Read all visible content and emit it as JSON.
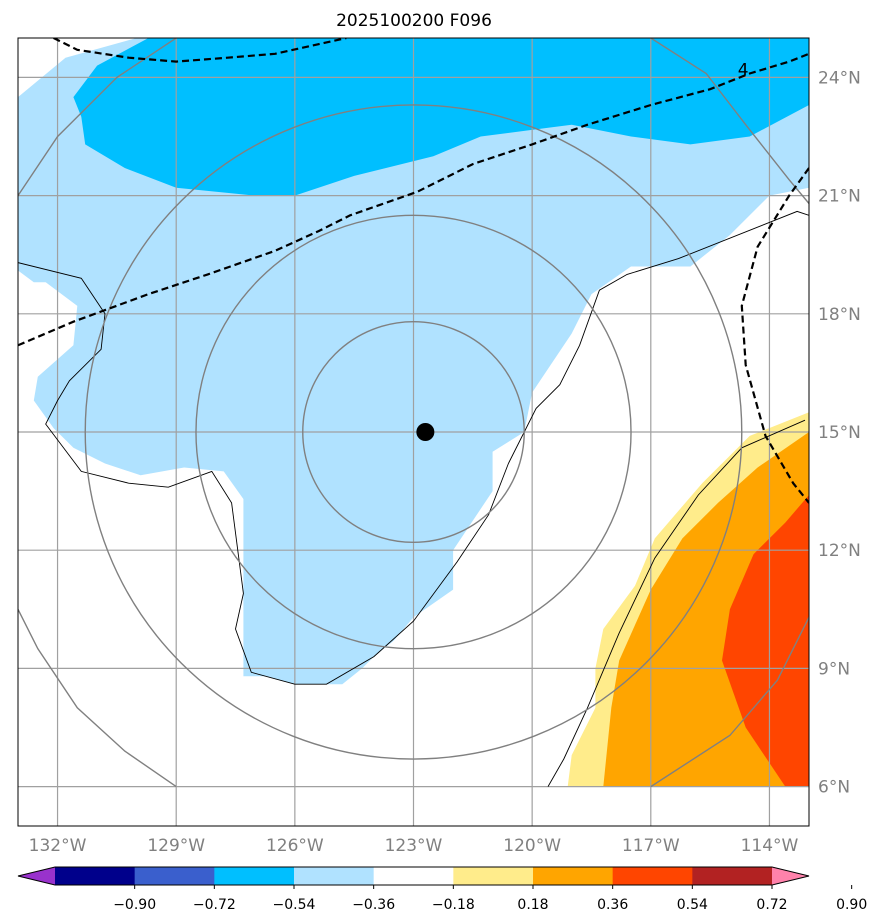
{
  "chart_data": {
    "type": "map",
    "title": "2025100200 F096",
    "lon_range": [
      -133,
      -113
    ],
    "lat_range": [
      5,
      25
    ],
    "x_ticks": [
      {
        "value": -132,
        "label": "132°W"
      },
      {
        "value": -129,
        "label": "129°W"
      },
      {
        "value": -126,
        "label": "126°W"
      },
      {
        "value": -123,
        "label": "123°W"
      },
      {
        "value": -120,
        "label": "120°W"
      },
      {
        "value": -117,
        "label": "117°W"
      },
      {
        "value": -114,
        "label": "114°W"
      }
    ],
    "y_ticks": [
      {
        "value": 24,
        "label": "24°N"
      },
      {
        "value": 21,
        "label": "21°N"
      },
      {
        "value": 18,
        "label": "18°N"
      },
      {
        "value": 15,
        "label": "15°N"
      },
      {
        "value": 12,
        "label": "12°N"
      },
      {
        "value": 9,
        "label": "9°N"
      },
      {
        "value": 6,
        "label": "6°N"
      }
    ],
    "storm_center": {
      "lon": -122.7,
      "lat": 15.0
    },
    "range_rings_deg": [
      2.8,
      5.5,
      8.3
    ],
    "range_ring_center": {
      "lon": -123.0,
      "lat": 15.0
    },
    "contour_label": "4",
    "colorbar": {
      "ticks": [
        "−0.90",
        "−0.72",
        "−0.54",
        "−0.36",
        "−0.18",
        "0.18",
        "0.36",
        "0.54",
        "0.72",
        "0.90"
      ],
      "colors": [
        "#9932cc",
        "#00008b",
        "#3a5fcd",
        "#00bfff",
        "#b0e2ff",
        "#ffffff",
        "#ffec8b",
        "#ffa500",
        "#ff4500",
        "#b22222",
        "#ff82ab"
      ]
    },
    "fill_colors": {
      "deep_negative": "#00bfff",
      "negative": "#b0e2ff",
      "positive_low": "#ffec8b",
      "positive_mid": "#ffa500",
      "positive_high": "#ff4500"
    },
    "fields": {
      "light_blue": [
        [
          -133,
          23.5
        ],
        [
          -131.8,
          24.5
        ],
        [
          -130,
          25
        ],
        [
          -113,
          25
        ],
        [
          -113,
          21.2
        ],
        [
          -114,
          21
        ],
        [
          -115,
          20
        ],
        [
          -116,
          19.2
        ],
        [
          -117.5,
          19.2
        ],
        [
          -118.5,
          18.5
        ],
        [
          -119,
          17.5
        ],
        [
          -120,
          16
        ],
        [
          -120.2,
          15
        ],
        [
          -121,
          14.5
        ],
        [
          -121,
          13.5
        ],
        [
          -122,
          12
        ],
        [
          -122,
          11
        ],
        [
          -123,
          10.3
        ],
        [
          -123.5,
          9.7
        ],
        [
          -124,
          9.3
        ],
        [
          -124.3,
          9.0
        ],
        [
          -124.8,
          8.6
        ],
        [
          -126,
          8.6
        ],
        [
          -126.7,
          8.8
        ],
        [
          -127.3,
          8.8
        ],
        [
          -127.3,
          13.3
        ],
        [
          -127.8,
          14
        ],
        [
          -128.8,
          14.1
        ],
        [
          -129.9,
          13.9
        ],
        [
          -130.8,
          14.2
        ],
        [
          -131.6,
          14.6
        ],
        [
          -132.1,
          15.1
        ],
        [
          -132.6,
          15.8
        ],
        [
          -132.5,
          16.4
        ],
        [
          -131.6,
          17.2
        ],
        [
          -131.5,
          18.2
        ],
        [
          -132.3,
          18.8
        ],
        [
          -132.6,
          18.8
        ],
        [
          -133,
          19.1
        ]
      ],
      "deep_blue": [
        [
          -131.4,
          23.0
        ],
        [
          -131.3,
          22.3
        ],
        [
          -130.3,
          21.7
        ],
        [
          -129,
          21.2
        ],
        [
          -127,
          21
        ],
        [
          -126,
          21
        ],
        [
          -124.5,
          21.5
        ],
        [
          -122.5,
          22
        ],
        [
          -121.3,
          22.5
        ],
        [
          -119,
          22.8
        ],
        [
          -117.5,
          22.5
        ],
        [
          -116,
          22.3
        ],
        [
          -114.5,
          22.5
        ],
        [
          -113,
          23.3
        ],
        [
          -113,
          25
        ],
        [
          -129.7,
          25
        ],
        [
          -131,
          24.3
        ],
        [
          -131.6,
          23.5
        ]
      ],
      "yellow": [
        [
          -113,
          15.5
        ],
        [
          -114.5,
          14.9
        ],
        [
          -115.7,
          13.7
        ],
        [
          -116.9,
          12.3
        ],
        [
          -117.4,
          11.1
        ],
        [
          -118.2,
          10.0
        ],
        [
          -118.4,
          9.0
        ],
        [
          -118.4,
          8.0
        ],
        [
          -119.0,
          6.8
        ],
        [
          -119.1,
          6.0
        ],
        [
          -113,
          6.0
        ]
      ],
      "orange": [
        [
          -113,
          15.0
        ],
        [
          -114.3,
          14.1
        ],
        [
          -115.3,
          13.2
        ],
        [
          -116.2,
          12.3
        ],
        [
          -117,
          11.0
        ],
        [
          -117.8,
          9.2
        ],
        [
          -118.0,
          8.0
        ],
        [
          -118.2,
          6.0
        ],
        [
          -113,
          6.0
        ]
      ],
      "red": [
        [
          -113,
          13.4
        ],
        [
          -113.6,
          12.7
        ],
        [
          -114.4,
          11.9
        ],
        [
          -115,
          10.5
        ],
        [
          -115.2,
          9.2
        ],
        [
          -114.6,
          7.5
        ],
        [
          -113.6,
          6.0
        ],
        [
          -113,
          6.0
        ]
      ]
    },
    "solid_contours": [
      [
        [
          -133,
          19.3
        ],
        [
          -131.4,
          18.9
        ],
        [
          -130.8,
          18.0
        ],
        [
          -130.9,
          17.1
        ],
        [
          -131.7,
          16.3
        ],
        [
          -132,
          15.8
        ],
        [
          -132.3,
          15.2
        ],
        [
          -131.4,
          14.0
        ],
        [
          -130.2,
          13.7
        ],
        [
          -129.2,
          13.6
        ],
        [
          -128.1,
          14
        ],
        [
          -127.6,
          13.2
        ],
        [
          -127.3,
          10.9
        ],
        [
          -127.5,
          10.0
        ],
        [
          -127.1,
          8.9
        ],
        [
          -126.0,
          8.6
        ],
        [
          -125.2,
          8.6
        ],
        [
          -124,
          9.3
        ],
        [
          -123.0,
          10.2
        ],
        [
          -121.9,
          11.7
        ],
        [
          -121.1,
          12.9
        ],
        [
          -120.6,
          14.2
        ],
        [
          -119.9,
          15.6
        ],
        [
          -119.3,
          16.2
        ],
        [
          -118.8,
          17.2
        ],
        [
          -118.3,
          18.6
        ],
        [
          -117.6,
          19.0
        ],
        [
          -116.3,
          19.4
        ],
        [
          -113.3,
          20.6
        ],
        [
          -113,
          20.5
        ]
      ],
      [
        [
          -113.1,
          15.3
        ],
        [
          -114.7,
          14.6
        ],
        [
          -115.8,
          13.4
        ],
        [
          -116.9,
          11.8
        ],
        [
          -117.8,
          9.9
        ],
        [
          -118.6,
          8.0
        ],
        [
          -119.2,
          6.7
        ],
        [
          -119.6,
          6.0
        ]
      ]
    ],
    "dashed_contours": [
      [
        [
          -132.1,
          25
        ],
        [
          -131.5,
          24.7
        ],
        [
          -130.2,
          24.5
        ],
        [
          -129.0,
          24.4
        ],
        [
          -127.7,
          24.5
        ],
        [
          -126.5,
          24.6
        ],
        [
          -124.7,
          25
        ]
      ],
      [
        [
          -133,
          17.2
        ],
        [
          -131.6,
          17.8
        ],
        [
          -129.7,
          18.5
        ],
        [
          -128.2,
          19.0
        ],
        [
          -126.5,
          19.6
        ],
        [
          -125.4,
          20.1
        ],
        [
          -124.6,
          20.5
        ],
        [
          -122.9,
          21.1
        ],
        [
          -121.5,
          21.8
        ],
        [
          -120.0,
          22.3
        ],
        [
          -118.6,
          22.8
        ],
        [
          -117.0,
          23.3
        ],
        [
          -115.5,
          23.7
        ],
        [
          -114.5,
          24.1
        ],
        [
          -113.5,
          24.4
        ],
        [
          -113,
          24.6
        ]
      ],
      [
        [
          -113,
          21.7
        ],
        [
          -113.5,
          21.0
        ],
        [
          -114.3,
          19.7
        ],
        [
          -114.7,
          18.2
        ],
        [
          -114.6,
          16.7
        ],
        [
          -114.1,
          14.9
        ],
        [
          -113.4,
          13.7
        ],
        [
          -113,
          13.2
        ]
      ]
    ],
    "outer_gray": [
      [
        [
          -133,
          21
        ],
        [
          -132,
          22.5
        ],
        [
          -130.5,
          24
        ],
        [
          -129,
          25
        ]
      ],
      [
        [
          -133,
          10.5
        ],
        [
          -132.5,
          9.5
        ],
        [
          -131.5,
          8
        ],
        [
          -130.3,
          6.9
        ],
        [
          -129,
          6
        ]
      ],
      [
        [
          -117.0,
          6.0
        ],
        [
          -115.0,
          7.3
        ],
        [
          -113.8,
          8.7
        ],
        [
          -113,
          10.3
        ]
      ],
      [
        [
          -117,
          25
        ],
        [
          -115.6,
          24.1
        ],
        [
          -114.6,
          22.8
        ],
        [
          -113.5,
          21.4
        ],
        [
          -113,
          20.8
        ]
      ]
    ]
  }
}
